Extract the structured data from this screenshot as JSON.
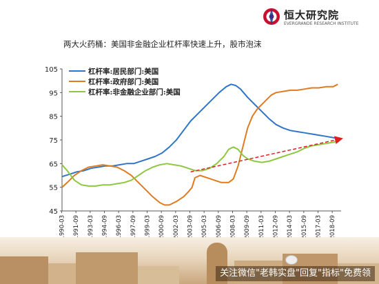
{
  "brand": {
    "name": "恒大研究院",
    "subtitle": "EVERGRANDE RESEARCH INSTITUTE",
    "logo_color": "#c8102e"
  },
  "title": "两大火药桶：美国非金融企业杠杆率快速上升，股市泡沫",
  "footer": {
    "watermark": "关注微信\"老韩实盘\"回复\"指标\"免费领"
  },
  "chart_data": {
    "type": "line",
    "ylim": [
      45,
      105
    ],
    "yticks": [
      "45",
      "55",
      "65",
      "75",
      "85",
      "95",
      "105"
    ],
    "xticks": [
      "1990-03",
      "1991-09",
      "1993-03",
      "1994-09",
      "1996-03",
      "1997-09",
      "1999-03",
      "2000-09",
      "2002-03",
      "2003-09",
      "2005-03",
      "2006-09",
      "2008-03",
      "2009-09",
      "2011-03",
      "2012-09",
      "2014-03",
      "2015-09",
      "2017-03",
      "2018-09"
    ],
    "grid": false,
    "legend": "top-left",
    "series": [
      {
        "name": "杠杆率:居民部门:美国",
        "color": "#2e75c7",
        "values": [
          [
            1990.2,
            59.5
          ],
          [
            1991.0,
            60.5
          ],
          [
            1991.75,
            61.5
          ],
          [
            1992.5,
            62
          ],
          [
            1993.25,
            63
          ],
          [
            1994.0,
            63.5
          ],
          [
            1994.75,
            64
          ],
          [
            1995.5,
            64
          ],
          [
            1996.25,
            64.5
          ],
          [
            1997.0,
            65
          ],
          [
            1997.75,
            65
          ],
          [
            1998.5,
            66
          ],
          [
            1999.25,
            67
          ],
          [
            2000.0,
            68
          ],
          [
            2000.75,
            69.5
          ],
          [
            2001.5,
            72
          ],
          [
            2002.25,
            75
          ],
          [
            2003.0,
            79
          ],
          [
            2003.75,
            83
          ],
          [
            2004.5,
            86
          ],
          [
            2005.25,
            89
          ],
          [
            2006.0,
            92
          ],
          [
            2006.75,
            95
          ],
          [
            2007.5,
            97.5
          ],
          [
            2008.0,
            98.5
          ],
          [
            2008.5,
            98
          ],
          [
            2009.0,
            96.5
          ],
          [
            2009.75,
            93
          ],
          [
            2010.5,
            90
          ],
          [
            2011.25,
            87
          ],
          [
            2012.0,
            84
          ],
          [
            2012.75,
            81.5
          ],
          [
            2013.5,
            80
          ],
          [
            2014.25,
            79
          ],
          [
            2015.0,
            78.5
          ],
          [
            2015.75,
            78
          ],
          [
            2016.5,
            77.5
          ],
          [
            2017.25,
            77
          ],
          [
            2018.0,
            76.5
          ],
          [
            2018.75,
            76
          ],
          [
            2019.25,
            75.5
          ]
        ]
      },
      {
        "name": "杠杆率:政府部门:美国",
        "color": "#e07a1f",
        "values": [
          [
            1990.2,
            55
          ],
          [
            1990.75,
            57
          ],
          [
            1991.5,
            60
          ],
          [
            1992.25,
            62
          ],
          [
            1993.0,
            63.5
          ],
          [
            1993.75,
            64
          ],
          [
            1994.5,
            64.5
          ],
          [
            1995.25,
            64
          ],
          [
            1996.0,
            63.5
          ],
          [
            1996.75,
            62
          ],
          [
            1997.5,
            60
          ],
          [
            1998.25,
            57
          ],
          [
            1999.0,
            54
          ],
          [
            1999.75,
            51
          ],
          [
            2000.5,
            48.5
          ],
          [
            2001.0,
            47.5
          ],
          [
            2001.5,
            47.5
          ],
          [
            2002.25,
            49
          ],
          [
            2003.0,
            51
          ],
          [
            2003.5,
            53
          ],
          [
            2003.9,
            55
          ],
          [
            2004.2,
            59
          ],
          [
            2004.75,
            60
          ],
          [
            2005.5,
            59
          ],
          [
            2006.25,
            58
          ],
          [
            2007.0,
            57
          ],
          [
            2007.75,
            57
          ],
          [
            2008.25,
            58.5
          ],
          [
            2008.75,
            64
          ],
          [
            2009.25,
            72
          ],
          [
            2009.75,
            80
          ],
          [
            2010.25,
            85
          ],
          [
            2010.75,
            88
          ],
          [
            2011.25,
            90
          ],
          [
            2011.75,
            92
          ],
          [
            2012.25,
            94
          ],
          [
            2012.75,
            95
          ],
          [
            2013.5,
            95.5
          ],
          [
            2014.25,
            96
          ],
          [
            2015.0,
            96
          ],
          [
            2015.75,
            96.5
          ],
          [
            2016.5,
            97
          ],
          [
            2017.25,
            97
          ],
          [
            2018.0,
            97.5
          ],
          [
            2018.75,
            97.5
          ],
          [
            2019.25,
            98.5
          ]
        ]
      },
      {
        "name": "杠杆率:非金融企业部门:美国",
        "color": "#8dc63f",
        "values": [
          [
            1990.2,
            64.5
          ],
          [
            1990.75,
            62
          ],
          [
            1991.5,
            58
          ],
          [
            1992.25,
            56
          ],
          [
            1993.0,
            55.5
          ],
          [
            1993.75,
            55.5
          ],
          [
            1994.5,
            56
          ],
          [
            1995.25,
            56
          ],
          [
            1996.0,
            56.5
          ],
          [
            1996.75,
            57
          ],
          [
            1997.5,
            58
          ],
          [
            1998.25,
            60
          ],
          [
            1999.0,
            62
          ],
          [
            1999.75,
            63.5
          ],
          [
            2000.5,
            64.5
          ],
          [
            2001.25,
            65
          ],
          [
            2002.0,
            64.5
          ],
          [
            2002.75,
            64
          ],
          [
            2003.5,
            63
          ],
          [
            2004.25,
            62
          ],
          [
            2005.0,
            62
          ],
          [
            2005.75,
            63
          ],
          [
            2006.5,
            65
          ],
          [
            2007.25,
            68
          ],
          [
            2007.75,
            71
          ],
          [
            2008.25,
            72
          ],
          [
            2008.75,
            71
          ],
          [
            2009.25,
            68.5
          ],
          [
            2009.75,
            67
          ],
          [
            2010.5,
            66
          ],
          [
            2011.25,
            65.5
          ],
          [
            2012.0,
            66
          ],
          [
            2012.75,
            67
          ],
          [
            2013.5,
            68
          ],
          [
            2014.25,
            69
          ],
          [
            2015.0,
            70
          ],
          [
            2015.75,
            71.5
          ],
          [
            2016.5,
            72.5
          ],
          [
            2017.25,
            73
          ],
          [
            2018.0,
            73.5
          ],
          [
            2018.75,
            74
          ],
          [
            2019.25,
            74.5
          ]
        ]
      }
    ],
    "annotations": [
      {
        "type": "arrow",
        "style": "dashed",
        "color": "#e02020",
        "from": [
          2003.75,
          61.5
        ],
        "to": [
          2019.6,
          75.5
        ]
      }
    ]
  }
}
